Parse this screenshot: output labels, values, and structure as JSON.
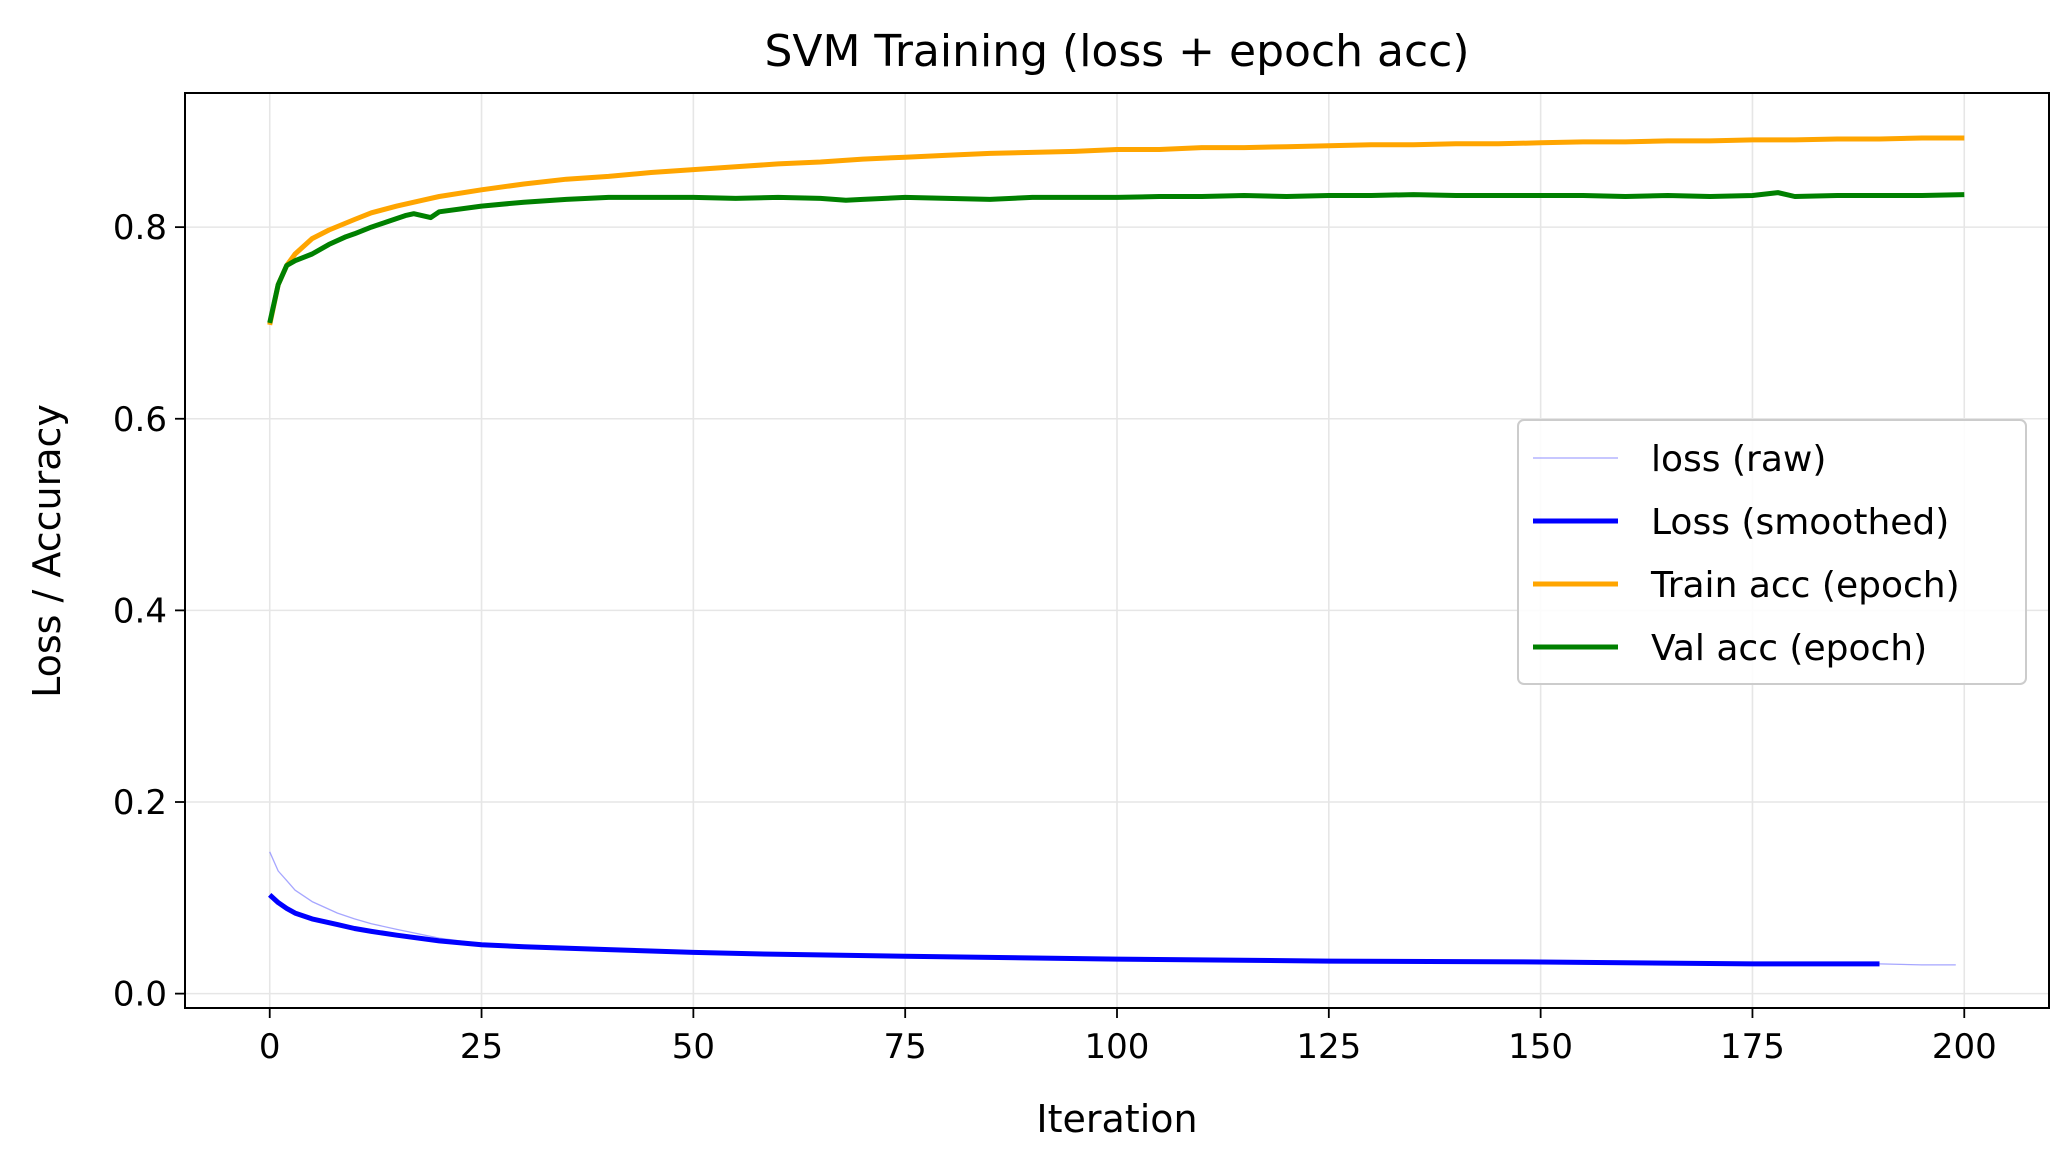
{
  "chart_data": {
    "type": "line",
    "title": "SVM Training (loss + epoch acc)",
    "xlabel": "Iteration",
    "ylabel": "Loss / Accuracy",
    "xlim": [
      -10,
      210
    ],
    "ylim": [
      -0.015,
      0.94
    ],
    "xticks": [
      0,
      25,
      50,
      75,
      100,
      125,
      150,
      175,
      200
    ],
    "yticks": [
      0.0,
      0.2,
      0.4,
      0.6,
      0.8
    ],
    "grid": true,
    "legend_position": "center-right",
    "series": [
      {
        "name": "loss (raw)",
        "color": "#8080ff",
        "style": "thin",
        "x": [
          0,
          1,
          2,
          3,
          5,
          8,
          10,
          12,
          15,
          20,
          25,
          30,
          40,
          50,
          60,
          75,
          100,
          125,
          150,
          175,
          190,
          195,
          199
        ],
        "y": [
          0.148,
          0.128,
          0.118,
          0.108,
          0.096,
          0.084,
          0.078,
          0.073,
          0.067,
          0.058,
          0.052,
          0.049,
          0.046,
          0.043,
          0.041,
          0.039,
          0.036,
          0.034,
          0.033,
          0.031,
          0.031,
          0.03,
          0.03
        ]
      },
      {
        "name": "Loss (smoothed)",
        "color": "#0000ff",
        "style": "thick",
        "x": [
          0,
          1,
          2,
          3,
          5,
          8,
          10,
          12,
          15,
          20,
          25,
          30,
          40,
          50,
          60,
          75,
          100,
          125,
          150,
          175,
          190
        ],
        "y": [
          0.103,
          0.095,
          0.089,
          0.084,
          0.078,
          0.072,
          0.068,
          0.065,
          0.061,
          0.055,
          0.051,
          0.049,
          0.046,
          0.043,
          0.041,
          0.039,
          0.036,
          0.034,
          0.033,
          0.031,
          0.031
        ]
      },
      {
        "name": "Train acc (epoch)",
        "color": "#ffa500",
        "style": "thick",
        "x": [
          0,
          1,
          2,
          3,
          5,
          7,
          10,
          12,
          15,
          18,
          20,
          25,
          30,
          35,
          40,
          45,
          50,
          55,
          60,
          65,
          70,
          75,
          80,
          85,
          90,
          95,
          100,
          105,
          110,
          115,
          120,
          125,
          130,
          135,
          140,
          145,
          150,
          155,
          160,
          165,
          170,
          175,
          180,
          185,
          190,
          195,
          200
        ],
        "y": [
          0.698,
          0.74,
          0.76,
          0.772,
          0.788,
          0.797,
          0.808,
          0.815,
          0.822,
          0.828,
          0.832,
          0.839,
          0.845,
          0.85,
          0.853,
          0.857,
          0.86,
          0.863,
          0.866,
          0.868,
          0.871,
          0.873,
          0.875,
          0.877,
          0.878,
          0.879,
          0.881,
          0.881,
          0.883,
          0.883,
          0.884,
          0.885,
          0.886,
          0.886,
          0.887,
          0.887,
          0.888,
          0.889,
          0.889,
          0.89,
          0.89,
          0.891,
          0.891,
          0.892,
          0.892,
          0.893,
          0.893
        ]
      },
      {
        "name": "Val acc (epoch)",
        "color": "#008000",
        "style": "thick",
        "x": [
          0,
          1,
          2,
          3,
          5,
          7,
          9,
          10,
          12,
          14,
          16,
          17,
          19,
          20,
          25,
          30,
          35,
          40,
          45,
          50,
          55,
          60,
          65,
          68,
          70,
          75,
          80,
          85,
          90,
          95,
          100,
          105,
          110,
          115,
          120,
          125,
          130,
          135,
          140,
          145,
          150,
          155,
          160,
          165,
          170,
          175,
          178,
          180,
          185,
          190,
          195,
          200
        ],
        "y": [
          0.7,
          0.74,
          0.76,
          0.765,
          0.772,
          0.782,
          0.79,
          0.793,
          0.8,
          0.806,
          0.812,
          0.814,
          0.81,
          0.816,
          0.822,
          0.826,
          0.829,
          0.831,
          0.831,
          0.831,
          0.83,
          0.831,
          0.83,
          0.828,
          0.829,
          0.831,
          0.83,
          0.829,
          0.831,
          0.831,
          0.831,
          0.832,
          0.832,
          0.833,
          0.832,
          0.833,
          0.833,
          0.834,
          0.833,
          0.833,
          0.833,
          0.833,
          0.832,
          0.833,
          0.832,
          0.833,
          0.836,
          0.832,
          0.833,
          0.833,
          0.833,
          0.834
        ]
      }
    ]
  }
}
